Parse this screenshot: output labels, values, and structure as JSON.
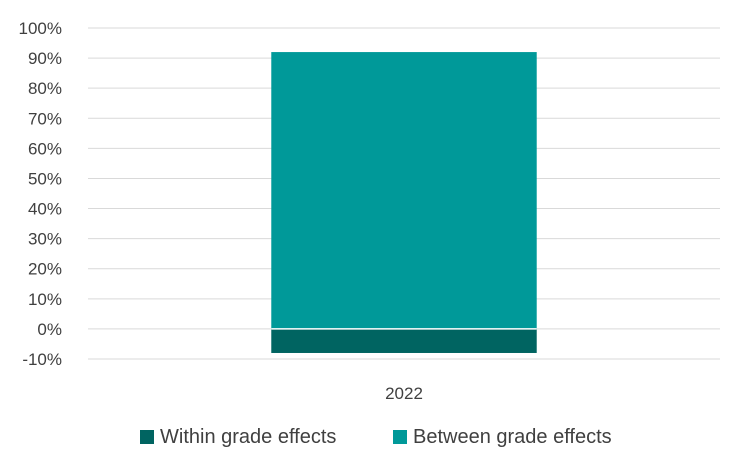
{
  "chart_data": {
    "type": "bar",
    "stacked": true,
    "categories": [
      "2022"
    ],
    "series": [
      {
        "name": "Within grade effects",
        "values": [
          -8
        ],
        "color": "#006461"
      },
      {
        "name": "Between grade effects",
        "values": [
          92
        ],
        "color": "#009999"
      }
    ],
    "title": "",
    "xlabel": "",
    "ylabel": "",
    "ylim": [
      -10,
      100
    ],
    "yticks": [
      "-10%",
      "0%",
      "10%",
      "20%",
      "30%",
      "40%",
      "50%",
      "60%",
      "70%",
      "80%",
      "90%",
      "100%"
    ],
    "grid": true,
    "legend_position": "bottom"
  }
}
